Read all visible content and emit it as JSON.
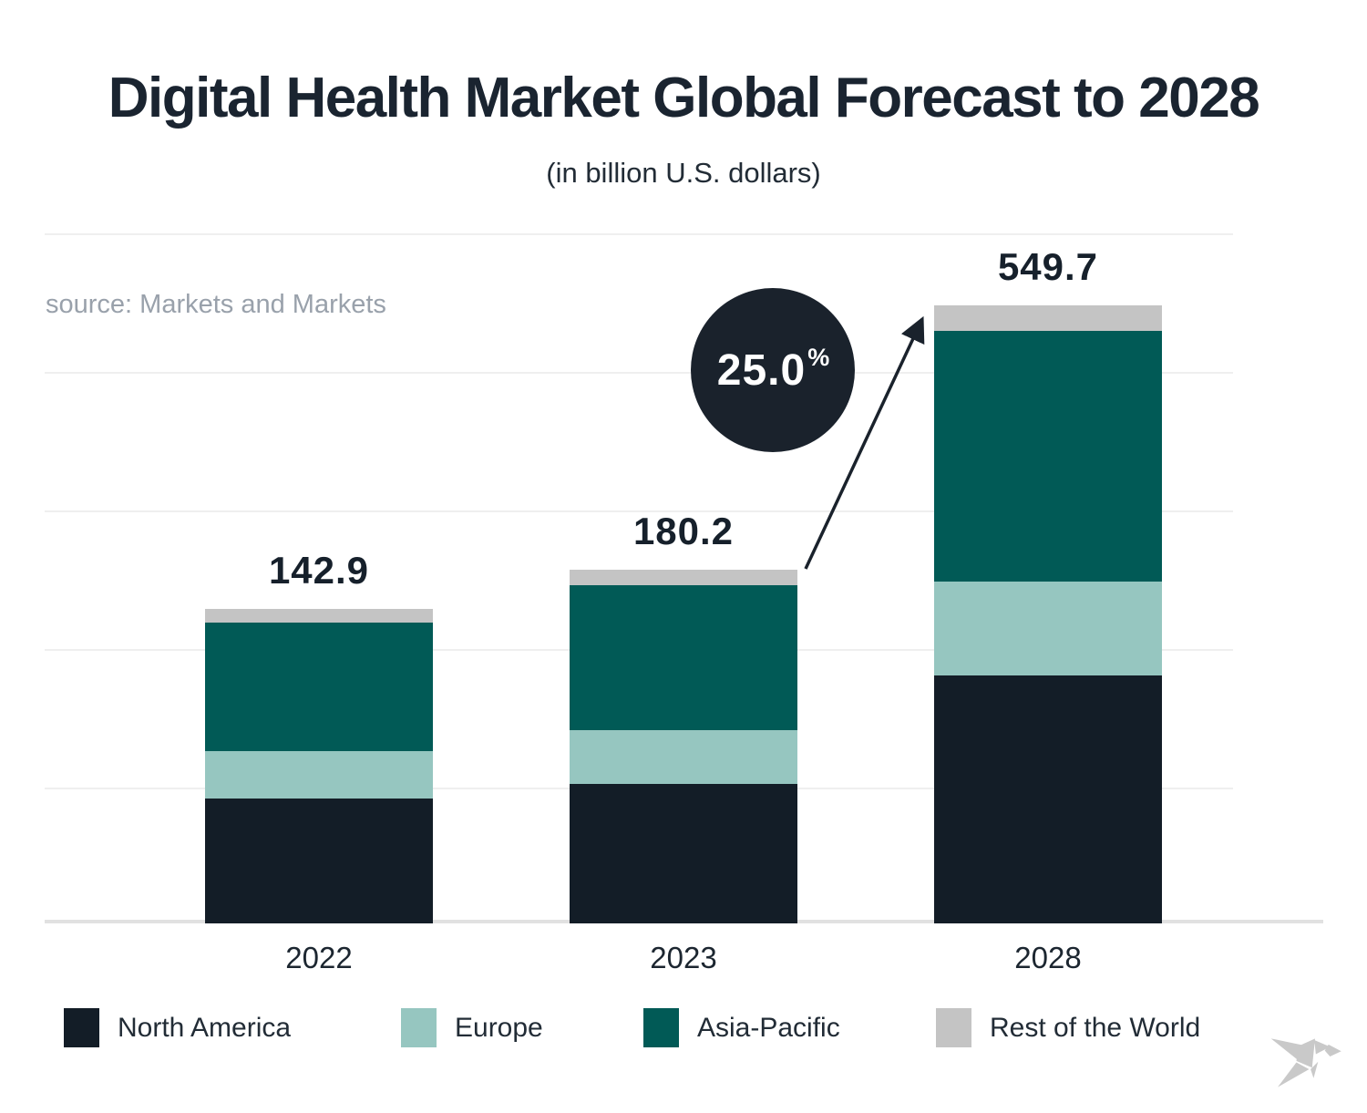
{
  "header": {
    "title": "Digital Health Market Global Forecast to 2028",
    "subtitle": "(in billion U.S. dollars)"
  },
  "source_note": "source: Markets and Markets",
  "growth_badge": {
    "value": "25.0",
    "unit": "%"
  },
  "colors": {
    "north_america": "#131d27",
    "europe": "#96c6c0",
    "asia_pacific": "#015a56",
    "rest_of_world": "#c4c4c4",
    "badge_background": "#1a222c",
    "badge_text": "#ffffff",
    "title_text": "#1a2430",
    "source_text": "#99a1ab",
    "gridline": "#efefef",
    "axis_line": "#e1e1e1"
  },
  "chart_data": {
    "type": "bar",
    "stacked": true,
    "title": "Digital Health Market Global Forecast to 2028",
    "unit_label": "billion U.S. dollars",
    "categories": [
      "2022",
      "2023",
      "2028"
    ],
    "totals": [
      142.9,
      180.2,
      549.7
    ],
    "series": [
      {
        "name": "North America",
        "color": "#131d27",
        "values": [
          56.8,
          71.1,
          221.0
        ]
      },
      {
        "name": "Europe",
        "color": "#96c6c0",
        "values": [
          21.5,
          27.5,
          82.8
        ]
      },
      {
        "name": "Asia-Pacific",
        "color": "#015a56",
        "values": [
          58.0,
          73.5,
          223.4
        ]
      },
      {
        "name": "Rest of the World",
        "color": "#c4c4c4",
        "values": [
          6.6,
          8.1,
          22.5
        ]
      }
    ],
    "annotation": {
      "growth_label": "25.0%",
      "from_category": "2023",
      "to_category": "2028"
    },
    "grid": true,
    "legend_position": "bottom",
    "y_axis_labels_visible": false,
    "segment_values_estimated": true
  },
  "legend": {
    "items": [
      {
        "label": "North America",
        "color": "#131d27"
      },
      {
        "label": "Europe",
        "color": "#96c6c0"
      },
      {
        "label": "Asia-Pacific",
        "color": "#015a56"
      },
      {
        "label": "Rest of the World",
        "color": "#c4c4c4"
      }
    ]
  },
  "logo": {
    "name": "origami-bird"
  }
}
